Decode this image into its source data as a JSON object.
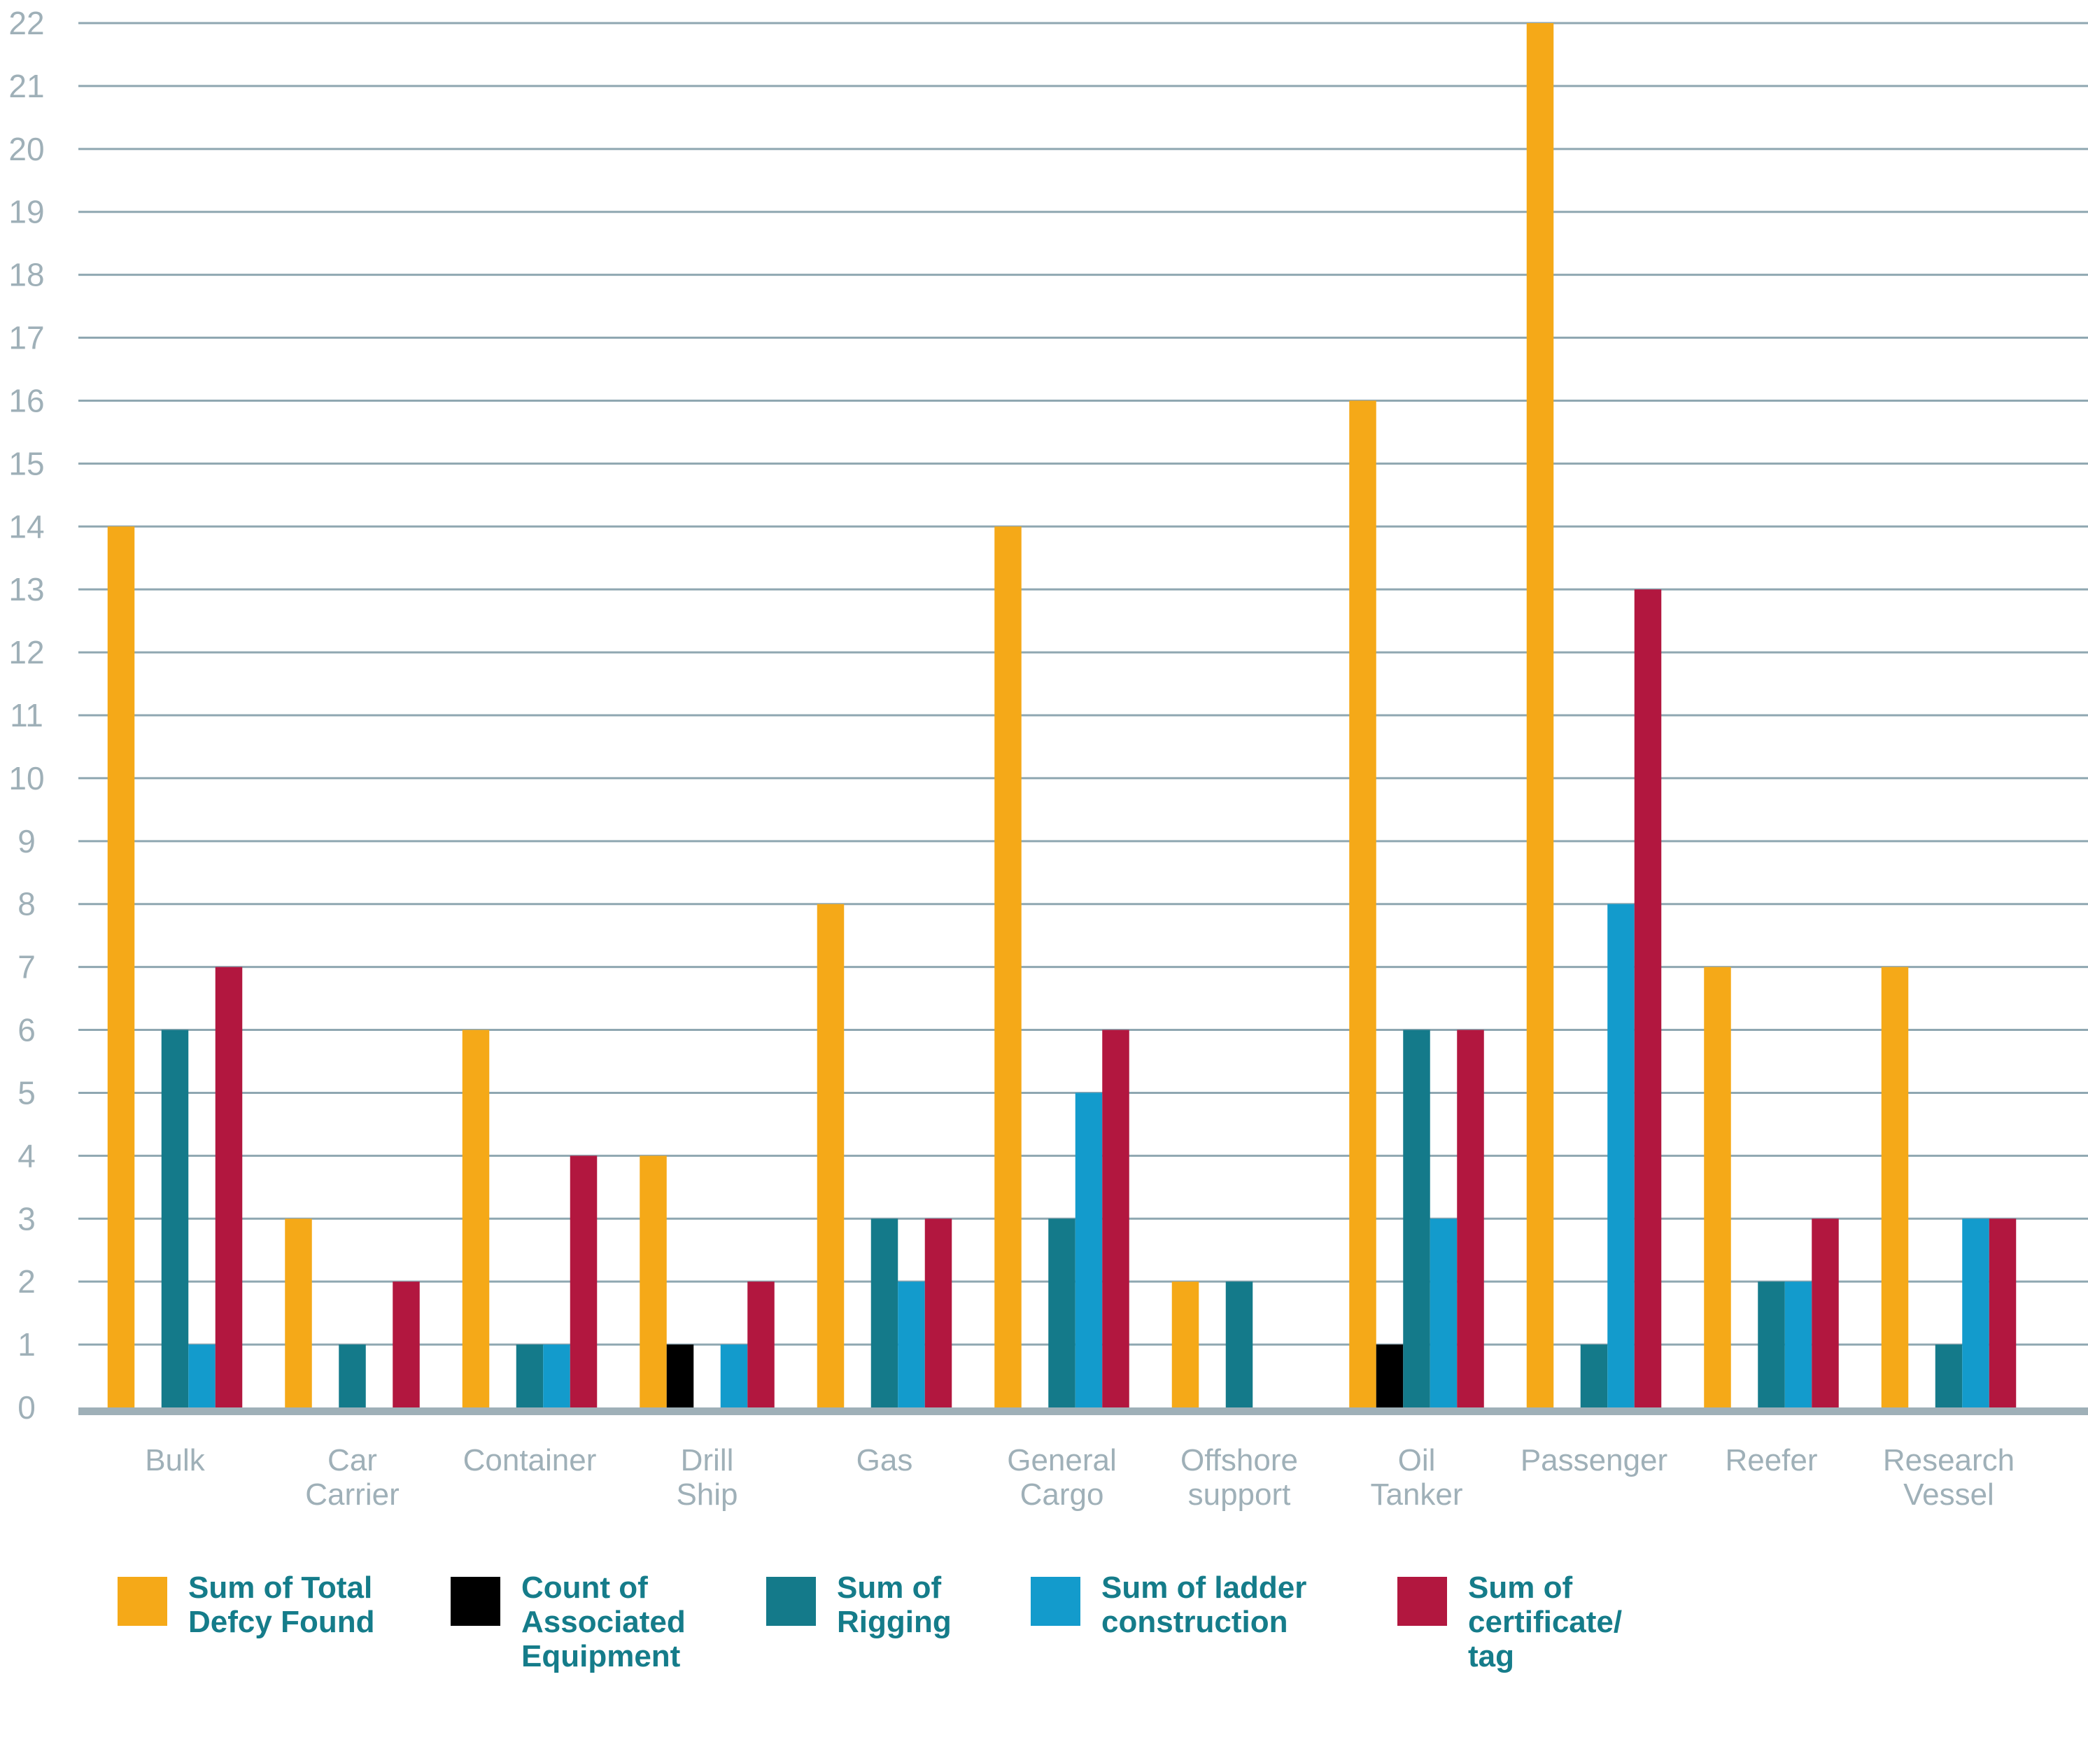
{
  "chart_data": {
    "type": "bar",
    "title": "",
    "xlabel": "",
    "ylabel": "",
    "ylim": [
      0,
      22
    ],
    "yticks": [
      0,
      1,
      2,
      3,
      4,
      5,
      6,
      7,
      8,
      9,
      10,
      11,
      12,
      13,
      14,
      15,
      16,
      17,
      18,
      19,
      20,
      21,
      22
    ],
    "grid": true,
    "legend_position": "bottom",
    "categories": [
      [
        "Bulk"
      ],
      [
        "Car",
        "Carrier"
      ],
      [
        "Container"
      ],
      [
        "Drill",
        "Ship"
      ],
      [
        "Gas"
      ],
      [
        "General",
        "Cargo"
      ],
      [
        "Offshore",
        "support"
      ],
      [
        "Oil",
        "Tanker"
      ],
      [
        "Passenger"
      ],
      [
        "Reefer"
      ],
      [
        "Research",
        "Vessel"
      ]
    ],
    "series": [
      {
        "name": [
          "Sum of Total",
          "Defcy Found"
        ],
        "color": "#f5a918",
        "values": [
          14,
          3,
          6,
          4,
          8,
          14,
          2,
          16,
          22,
          7,
          7
        ]
      },
      {
        "name": [
          "Count of",
          "Associated",
          "Equipment"
        ],
        "color": "#000000",
        "values": [
          0,
          0,
          0,
          1,
          0,
          0,
          0,
          1,
          0,
          0,
          0
        ]
      },
      {
        "name": [
          "Sum of",
          "Rigging"
        ],
        "color": "#147a8a",
        "values": [
          6,
          1,
          1,
          0,
          3,
          3,
          2,
          6,
          1,
          2,
          1
        ]
      },
      {
        "name": [
          "Sum of ladder",
          "construction"
        ],
        "color": "#139bcc",
        "values": [
          1,
          0,
          1,
          1,
          2,
          5,
          0,
          3,
          8,
          2,
          3
        ]
      },
      {
        "name": [
          "Sum of",
          "certificate/",
          "tag"
        ],
        "color": "#b2173f",
        "values": [
          7,
          2,
          4,
          2,
          3,
          6,
          0,
          6,
          13,
          3,
          3
        ]
      }
    ],
    "colors": {
      "grid": "#8fa7b1",
      "axis": "#9fb0b8",
      "tick_text": "#9fb0b8",
      "legend_text": "#157c8a"
    }
  }
}
